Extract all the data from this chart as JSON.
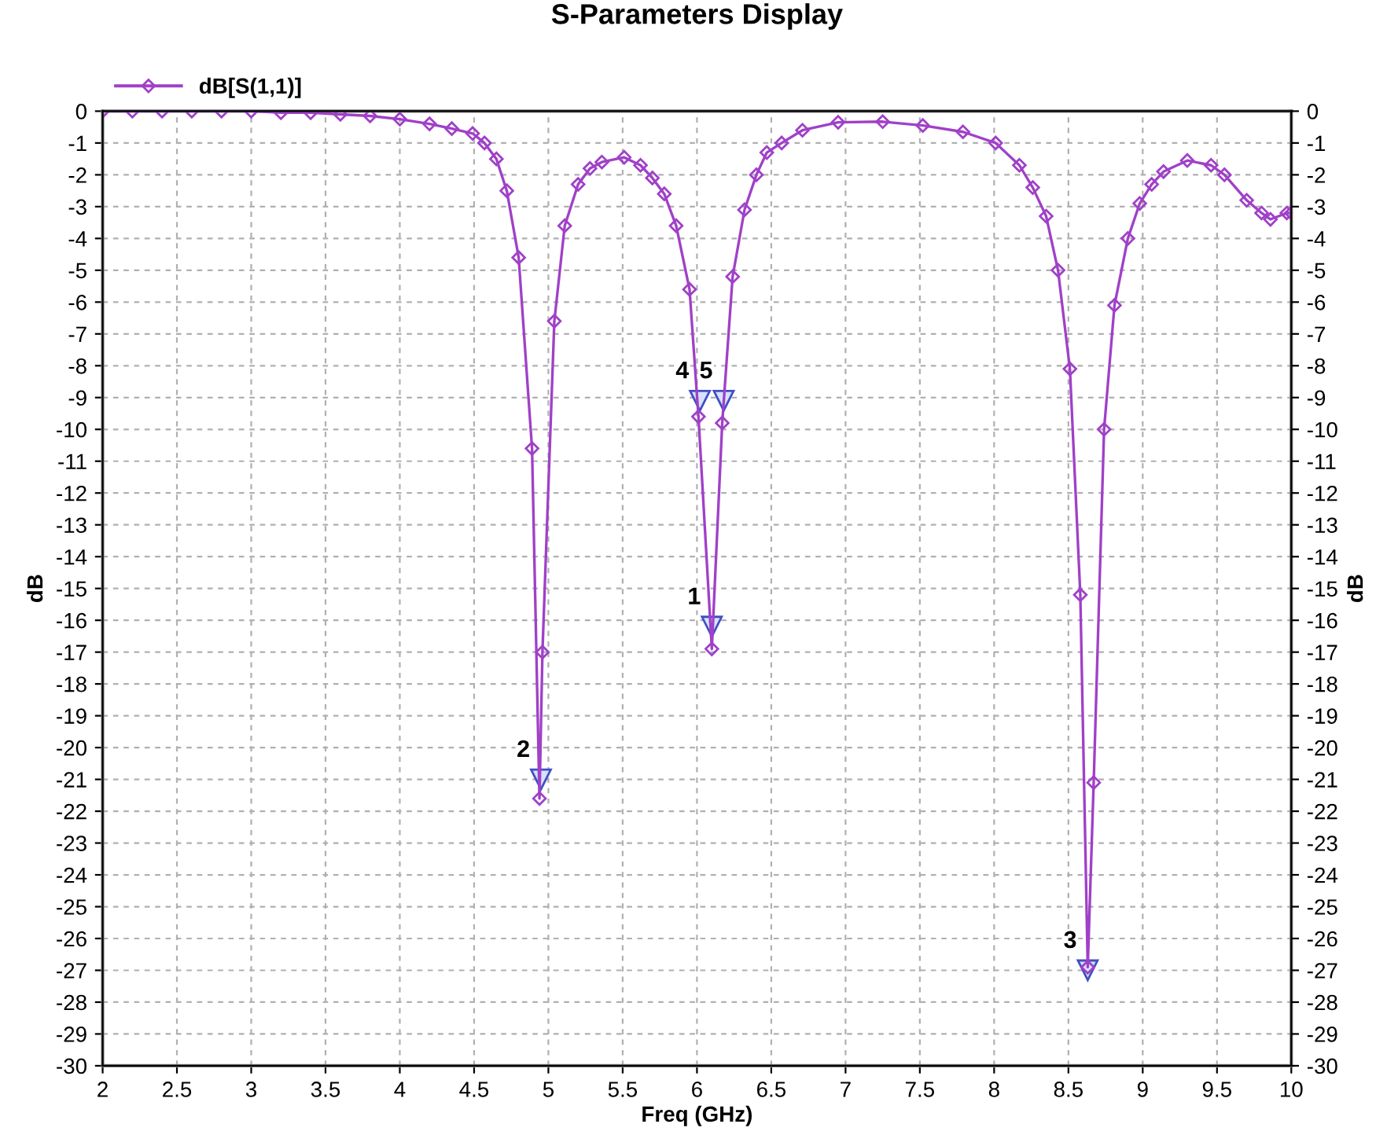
{
  "chart_data": {
    "type": "line",
    "title": "S-Parameters Display",
    "xlabel": "Freq (GHz)",
    "ylabel": "dB",
    "y2label": "dB",
    "xlim": [
      2,
      10
    ],
    "xticks": [
      2,
      {
        "value": 2.5,
        "label": "2.5"
      },
      3,
      {
        "value": 3.5,
        "label": "3.5"
      },
      4,
      {
        "value": 4.5,
        "label": "4.5"
      },
      5,
      {
        "value": 5.5,
        "label": "5.5"
      },
      6,
      {
        "value": 6.5,
        "label": "6.5"
      },
      7,
      {
        "value": 7.5,
        "label": "7.5"
      },
      8,
      {
        "value": 8.5,
        "label": "8.5"
      },
      9,
      {
        "value": 9.5,
        "label": "9.5"
      },
      10
    ],
    "ylim": [
      -30,
      0
    ],
    "yticks": [
      0,
      -1,
      -2,
      -3,
      -4,
      -5,
      -6,
      -7,
      -8,
      -9,
      -10,
      -11,
      -12,
      -13,
      -14,
      -15,
      -16,
      -17,
      -18,
      -19,
      -20,
      -21,
      -22,
      -23,
      -24,
      -25,
      -26,
      -27,
      -28,
      -29,
      -30
    ],
    "y2lim": [
      -30,
      0
    ],
    "y2ticks": [
      0,
      -1,
      -2,
      -3,
      -4,
      -5,
      -6,
      -7,
      -8,
      -9,
      -10,
      -11,
      -12,
      -13,
      -14,
      -15,
      -16,
      -17,
      -18,
      -19,
      -20,
      -21,
      -22,
      -23,
      -24,
      -25,
      -26,
      -27,
      -28,
      -29,
      -30
    ],
    "grid": true,
    "legend": "top left",
    "marker": "diamond",
    "line_style": "solid",
    "series": [
      {
        "name": "dB[S(1,1)]",
        "color": "#a040c8",
        "x": [
          2.0,
          2.2,
          2.4,
          2.6,
          2.8,
          3.0,
          3.2,
          3.4,
          3.6,
          3.8,
          4.0,
          4.2,
          4.35,
          4.49,
          4.57,
          4.65,
          4.72,
          4.8,
          4.89,
          4.94,
          4.96,
          5.04,
          5.11,
          5.2,
          5.28,
          5.36,
          5.51,
          5.62,
          5.7,
          5.78,
          5.86,
          5.95,
          6.01,
          6.1,
          6.17,
          6.24,
          6.32,
          6.4,
          6.47,
          6.57,
          6.71,
          6.95,
          7.25,
          7.52,
          7.79,
          8.01,
          8.17,
          8.26,
          8.35,
          8.43,
          8.51,
          8.58,
          8.63,
          8.67,
          8.74,
          8.81,
          8.9,
          8.98,
          9.06,
          9.14,
          9.3,
          9.46,
          9.55,
          9.7,
          9.8,
          9.86,
          9.97,
          10.0
        ],
        "values": [
          0,
          0,
          0,
          0,
          0,
          0,
          -0.05,
          -0.05,
          -0.1,
          -0.15,
          -0.25,
          -0.4,
          -0.55,
          -0.7,
          -1.0,
          -1.5,
          -2.5,
          -4.6,
          -10.6,
          -21.6,
          -17,
          -6.6,
          -3.6,
          -2.3,
          -1.8,
          -1.6,
          -1.45,
          -1.7,
          -2.1,
          -2.6,
          -3.6,
          -5.6,
          -9.6,
          -16.9,
          -9.8,
          -5.2,
          -3.1,
          -2.0,
          -1.3,
          -1.0,
          -0.6,
          -0.35,
          -0.33,
          -0.45,
          -0.65,
          -1.0,
          -1.7,
          -2.4,
          -3.3,
          -5.0,
          -8.1,
          -15.2,
          -26.9,
          -21.1,
          -10.0,
          -6.1,
          -4.0,
          -2.9,
          -2.3,
          -1.9,
          -1.55,
          -1.7,
          -2.0,
          -2.8,
          -3.2,
          -3.4,
          -3.2,
          -3.2
        ]
      }
    ],
    "annotations": [
      {
        "text": "1",
        "x": 6.1,
        "y": -16.2
      },
      {
        "text": "2",
        "x": 4.95,
        "y": -21
      },
      {
        "text": "3",
        "x": 8.63,
        "y": -27
      },
      {
        "text": "4",
        "x": 6.02,
        "y": -9.1
      },
      {
        "text": "5",
        "x": 6.18,
        "y": -9.1
      }
    ]
  }
}
